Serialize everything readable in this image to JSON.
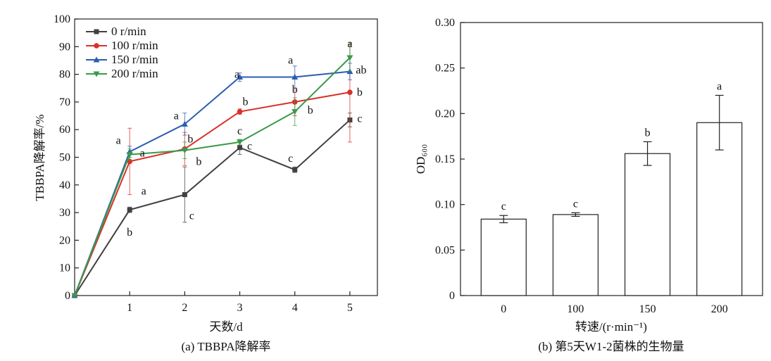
{
  "chart_data": [
    {
      "type": "line",
      "caption": "(a) TBBPA降解率",
      "xlabel": "天数/d",
      "ylabel": "TBBPA降解率/%",
      "x": [
        0,
        1,
        2,
        3,
        4,
        5
      ],
      "xticks": [
        "1",
        "2",
        "3",
        "4",
        "5"
      ],
      "xlim": [
        0,
        5.5
      ],
      "ylim": [
        0,
        100
      ],
      "yticks": [
        "0",
        "10",
        "20",
        "30",
        "40",
        "50",
        "60",
        "70",
        "80",
        "90",
        "100"
      ],
      "legend_position": "top-left",
      "series": [
        {
          "name": "0 r/min",
          "color": "#404040",
          "marker": "square",
          "values": [
            0,
            31,
            36.5,
            53.5,
            45.5,
            63.5
          ],
          "errors": [
            0,
            1,
            10,
            2.5,
            1,
            2.5
          ],
          "sig_labels": [
            "",
            "b",
            "c",
            "c",
            "c",
            "c"
          ]
        },
        {
          "name": "100 r/min",
          "color": "#d9302a",
          "marker": "circle",
          "values": [
            0,
            48.5,
            53,
            66.5,
            70,
            73.5
          ],
          "errors": [
            0,
            12,
            6,
            1,
            5,
            18
          ],
          "sig_labels": [
            "",
            "a",
            "b",
            "b",
            "b",
            "b"
          ]
        },
        {
          "name": "150 r/min",
          "color": "#2a5db0",
          "marker": "triangle-up",
          "values": [
            0,
            52,
            62,
            79,
            79,
            81
          ],
          "errors": [
            0,
            2,
            4,
            1.5,
            4,
            3
          ],
          "sig_labels": [
            "",
            "a",
            "a",
            "a",
            "a",
            "ab"
          ]
        },
        {
          "name": "200 r/min",
          "color": "#3a9a4a",
          "marker": "triangle-down",
          "values": [
            0,
            51,
            52.5,
            55.5,
            66.5,
            86
          ],
          "errors": [
            0,
            2,
            3,
            1,
            5,
            5
          ],
          "sig_labels": [
            "",
            "a",
            "b",
            "c",
            "b",
            "a"
          ]
        }
      ]
    },
    {
      "type": "bar",
      "caption": "(b) 第5天W1-2菌株的生物量",
      "xlabel": "转速/(r·min⁻¹)",
      "ylabel": "OD₆₀₀",
      "categories": [
        "0",
        "100",
        "150",
        "200"
      ],
      "values": [
        0.084,
        0.089,
        0.156,
        0.19
      ],
      "errors": [
        0.004,
        0.002,
        0.013,
        0.03
      ],
      "sig_labels": [
        "c",
        "c",
        "b",
        "a"
      ],
      "ylim": [
        0,
        0.3
      ],
      "yticks": [
        "0",
        "0.05",
        "0.10",
        "0.15",
        "0.20",
        "0.25",
        "0.30"
      ],
      "bar_color": "#ffffff"
    }
  ]
}
